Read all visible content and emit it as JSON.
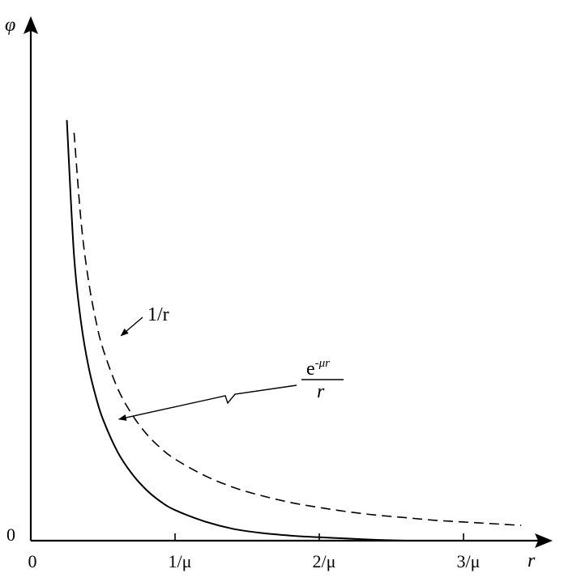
{
  "chart_data": {
    "type": "line",
    "xlabel": "r",
    "ylabel": "φ",
    "origin_y_label": "0",
    "x_ticks": [
      {
        "value": 0,
        "label": "0"
      },
      {
        "value": 1,
        "label": "1/μ"
      },
      {
        "value": 2,
        "label": "2/μ"
      },
      {
        "value": 3,
        "label": "3/μ"
      }
    ],
    "xlim": [
      0,
      3.55
    ],
    "ylim": [
      0,
      5.3
    ],
    "series": [
      {
        "name": "1/r",
        "style": "dashed",
        "x": [
          0.3,
          0.35,
          0.4,
          0.45,
          0.5,
          0.6,
          0.7,
          0.8,
          0.9,
          1.0,
          1.2,
          1.4,
          1.6,
          1.8,
          2.0,
          2.2,
          2.4,
          2.6,
          2.8,
          3.0,
          3.2,
          3.4
        ],
        "y": [
          4.8,
          3.73,
          3.06,
          2.6,
          2.26,
          1.8,
          1.49,
          1.26,
          1.09,
          0.96,
          0.77,
          0.63,
          0.53,
          0.45,
          0.39,
          0.34,
          0.3,
          0.27,
          0.24,
          0.22,
          0.2,
          0.18
        ]
      },
      {
        "name": "e^{-μr}/r",
        "style": "solid",
        "x": [
          0.25,
          0.3,
          0.35,
          0.4,
          0.45,
          0.5,
          0.6,
          0.7,
          0.8,
          0.9,
          1.0,
          1.2,
          1.4,
          1.6,
          1.8,
          2.0,
          2.2,
          2.4,
          2.6
        ],
        "y": [
          4.95,
          3.35,
          2.55,
          2.05,
          1.7,
          1.43,
          1.05,
          0.79,
          0.6,
          0.46,
          0.36,
          0.23,
          0.14,
          0.09,
          0.06,
          0.04,
          0.025,
          0.01,
          0.0
        ]
      }
    ],
    "annotations": {
      "inv_r": {
        "text": "1/r",
        "target": [
          0.62,
          2.45
        ]
      },
      "yukawa": {
        "numerator_base": "e",
        "numerator_exponent": "-μr",
        "denominator": "r",
        "target": [
          0.6,
          1.43
        ]
      }
    }
  }
}
